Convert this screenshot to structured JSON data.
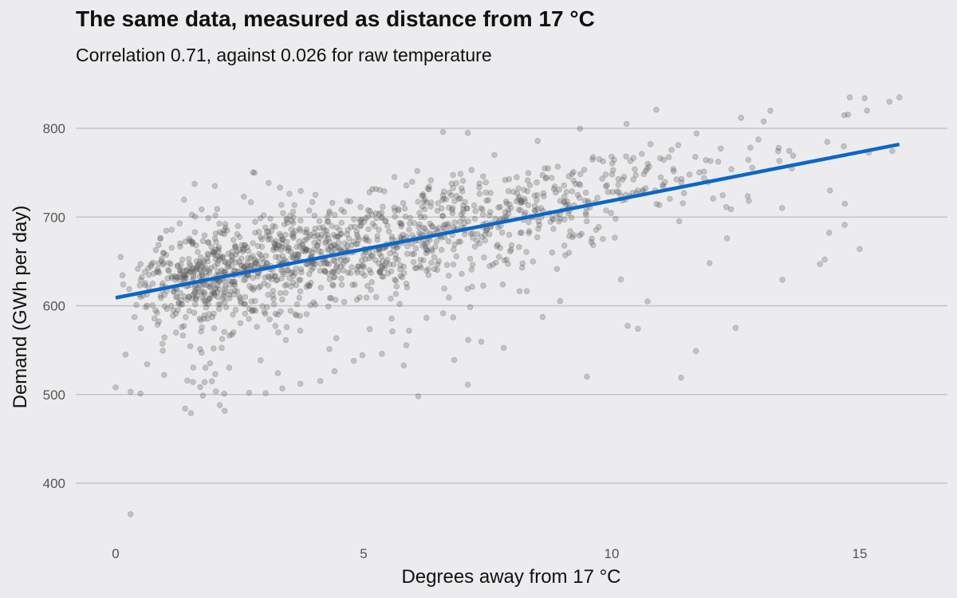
{
  "chart_data": {
    "type": "scatter",
    "title": "The same data, measured as distance from 17 °C",
    "subtitle": "Correlation 0.71, against 0.026 for raw temperature",
    "xlabel": "Degrees away from 17 °C",
    "ylabel": "Demand (GWh per day)",
    "xlim": [
      -0.6,
      16.6
    ],
    "ylim": [
      335,
      850
    ],
    "xticks": [
      0,
      5,
      10,
      15
    ],
    "yticks": [
      400,
      500,
      600,
      700,
      800
    ],
    "grid": "horizontal",
    "legend": "none",
    "point_count": 1500,
    "points_described_as": "grey semi-transparent dots, dense cloud rising from about 610–660 GWh at 0 degrees to about 700–820 GWh at 13–15 degrees, with scattered low outliers",
    "sample_points": [
      [
        0.0,
        508
      ],
      [
        0.1,
        655
      ],
      [
        0.3,
        365
      ],
      [
        0.3,
        503
      ],
      [
        0.5,
        501
      ],
      [
        0.2,
        545
      ],
      [
        1.4,
        484
      ],
      [
        2.1,
        488
      ],
      [
        2.0,
        735
      ],
      [
        2.8,
        750
      ],
      [
        4.8,
        538
      ],
      [
        6.1,
        498
      ],
      [
        7.1,
        511
      ],
      [
        9.5,
        520
      ],
      [
        11.4,
        519
      ],
      [
        10.3,
        805
      ],
      [
        10.9,
        821
      ],
      [
        15.8,
        835
      ],
      [
        14.8,
        835
      ],
      [
        15.1,
        834
      ],
      [
        15.0,
        664
      ],
      [
        12.5,
        575
      ],
      [
        11.7,
        549
      ],
      [
        6.6,
        796
      ],
      [
        7.1,
        795
      ],
      [
        13.2,
        820
      ],
      [
        14.2,
        647
      ],
      [
        14.4,
        730
      ],
      [
        14.7,
        715
      ],
      [
        8.8,
        660
      ]
    ],
    "fit_line": {
      "x": [
        0,
        15.8
      ],
      "y": [
        609,
        782
      ]
    },
    "colors": {
      "points": "#555555",
      "fit_line": "#0b66c9",
      "grid": "#c4c4c8",
      "background": "#ececee"
    }
  }
}
